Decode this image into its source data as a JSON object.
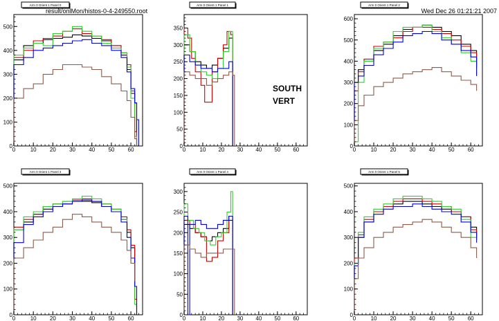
{
  "header": {
    "file": "result/onlMon/histos-0-4-249550.root",
    "datetime": "Wed Dec 26 01:21:21 2007"
  },
  "overlay_text": [
    "SOUTH",
    "VERT"
  ],
  "colors": {
    "black": "#000000",
    "red": "#cc0000",
    "green": "#33cc33",
    "blue": "#0000dd",
    "brown": "#8b5a4a"
  },
  "chart_data": [
    {
      "type": "line",
      "title": "Arm 0 Orient 1 Panel 0",
      "xlim": [
        0,
        66
      ],
      "ylim": [
        0,
        550
      ],
      "xticks": [
        0,
        10,
        20,
        30,
        40,
        50,
        60
      ],
      "yticks": [
        0,
        100,
        200,
        300,
        400,
        500
      ],
      "series": [
        {
          "color": "black",
          "x": [
            0,
            5,
            10,
            15,
            20,
            25,
            30,
            35,
            40,
            45,
            50,
            55,
            58,
            60,
            62,
            63
          ],
          "y": [
            360,
            420,
            430,
            445,
            450,
            455,
            465,
            460,
            450,
            440,
            420,
            380,
            320,
            220,
            180,
            0
          ]
        },
        {
          "color": "red",
          "x": [
            0,
            5,
            10,
            15,
            20,
            25,
            30,
            35,
            40,
            45,
            50,
            55,
            58,
            60,
            62,
            63
          ],
          "y": [
            370,
            400,
            440,
            450,
            460,
            480,
            490,
            470,
            460,
            445,
            420,
            390,
            340,
            230,
            60,
            0
          ]
        },
        {
          "color": "green",
          "x": [
            0,
            5,
            10,
            15,
            20,
            25,
            30,
            35,
            40,
            45,
            50,
            55,
            58,
            60,
            62,
            63
          ],
          "y": [
            380,
            410,
            430,
            420,
            470,
            480,
            500,
            480,
            460,
            430,
            410,
            390,
            330,
            200,
            40,
            0
          ]
        },
        {
          "color": "blue",
          "x": [
            0,
            5,
            10,
            15,
            20,
            25,
            30,
            35,
            40,
            45,
            50,
            55,
            58,
            60,
            62,
            63,
            64
          ],
          "y": [
            340,
            370,
            400,
            410,
            420,
            430,
            440,
            445,
            430,
            420,
            400,
            370,
            310,
            240,
            180,
            110,
            0
          ]
        },
        {
          "color": "brown",
          "x": [
            0,
            5,
            10,
            15,
            20,
            25,
            30,
            35,
            40,
            45,
            50,
            55,
            58,
            60,
            62,
            63
          ],
          "y": [
            200,
            240,
            260,
            300,
            320,
            340,
            340,
            330,
            320,
            290,
            260,
            230,
            190,
            120,
            30,
            0
          ]
        }
      ]
    },
    {
      "type": "line",
      "title": "Arm 0 Orient 1 Panel 1",
      "xlim": [
        0,
        66
      ],
      "ylim": [
        0,
        390
      ],
      "xticks": [
        0,
        10,
        20,
        30,
        40,
        50,
        60
      ],
      "yticks": [
        0,
        50,
        100,
        150,
        200,
        250,
        300,
        350
      ],
      "series": [
        {
          "color": "black",
          "x": [
            0,
            3,
            6,
            9,
            12,
            15,
            18,
            21,
            24,
            26
          ],
          "y": [
            300,
            280,
            250,
            240,
            230,
            240,
            260,
            290,
            320,
            0
          ]
        },
        {
          "color": "red",
          "x": [
            0,
            2,
            4,
            6,
            9,
            11,
            13,
            15,
            18,
            21,
            23,
            25,
            26
          ],
          "y": [
            350,
            320,
            260,
            220,
            180,
            130,
            130,
            220,
            260,
            300,
            340,
            330,
            0
          ]
        },
        {
          "color": "green",
          "x": [
            0,
            3,
            6,
            9,
            12,
            15,
            18,
            21,
            24,
            26
          ],
          "y": [
            330,
            280,
            240,
            220,
            210,
            200,
            230,
            280,
            340,
            0
          ]
        },
        {
          "color": "blue",
          "x": [
            0,
            3,
            6,
            9,
            12,
            15,
            18,
            21,
            24,
            26
          ],
          "y": [
            270,
            250,
            240,
            230,
            230,
            220,
            230,
            230,
            250,
            0
          ]
        },
        {
          "color": "brown",
          "x": [
            0,
            3,
            6,
            9,
            12,
            15,
            18,
            21,
            24,
            26,
            27
          ],
          "y": [
            220,
            210,
            200,
            200,
            180,
            190,
            200,
            210,
            220,
            210,
            0
          ]
        }
      ]
    },
    {
      "type": "line",
      "title": "Arm 0 Orient 1 Panel 2",
      "xlim": [
        0,
        66
      ],
      "ylim": [
        0,
        620
      ],
      "xticks": [
        0,
        10,
        20,
        30,
        40,
        50,
        60
      ],
      "yticks": [
        0,
        100,
        200,
        300,
        400,
        500,
        600
      ],
      "series": [
        {
          "color": "black",
          "x": [
            0,
            2,
            5,
            10,
            15,
            20,
            25,
            30,
            35,
            40,
            45,
            50,
            55,
            60,
            63
          ],
          "y": [
            300,
            360,
            400,
            450,
            480,
            520,
            550,
            560,
            570,
            560,
            540,
            520,
            480,
            450,
            380
          ]
        },
        {
          "color": "red",
          "x": [
            0,
            2,
            5,
            10,
            15,
            20,
            25,
            30,
            35,
            40,
            45,
            50,
            55,
            60,
            63
          ],
          "y": [
            260,
            350,
            410,
            470,
            490,
            510,
            540,
            560,
            560,
            550,
            530,
            500,
            470,
            440,
            370
          ]
        },
        {
          "color": "green",
          "x": [
            0,
            2,
            5,
            10,
            15,
            20,
            25,
            30,
            35,
            40,
            45,
            50,
            55,
            60,
            63
          ],
          "y": [
            20,
            300,
            400,
            460,
            490,
            540,
            560,
            560,
            570,
            540,
            510,
            480,
            440,
            400,
            330
          ]
        },
        {
          "color": "blue",
          "x": [
            0,
            2,
            5,
            10,
            15,
            20,
            25,
            30,
            35,
            40,
            45,
            50,
            55,
            60,
            63
          ],
          "y": [
            300,
            330,
            380,
            430,
            460,
            490,
            520,
            530,
            540,
            530,
            500,
            480,
            450,
            420,
            330
          ]
        },
        {
          "color": "brown",
          "x": [
            0,
            2,
            5,
            10,
            15,
            20,
            25,
            30,
            35,
            40,
            45,
            50,
            55,
            60,
            63
          ],
          "y": [
            120,
            190,
            240,
            280,
            300,
            320,
            340,
            350,
            360,
            370,
            350,
            330,
            310,
            290,
            260
          ]
        }
      ]
    },
    {
      "type": "line",
      "title": "Arm 0 Orient 1 Panel 3",
      "xlim": [
        0,
        66
      ],
      "ylim": [
        0,
        510
      ],
      "xticks": [
        0,
        10,
        20,
        30,
        40,
        50,
        60
      ],
      "yticks": [
        0,
        100,
        200,
        300,
        400,
        500
      ],
      "series": [
        {
          "color": "black",
          "x": [
            0,
            5,
            10,
            15,
            20,
            25,
            30,
            35,
            40,
            45,
            50,
            55,
            58,
            60,
            62
          ],
          "y": [
            330,
            360,
            390,
            410,
            420,
            430,
            440,
            440,
            435,
            420,
            400,
            370,
            320,
            260,
            120
          ]
        },
        {
          "color": "red",
          "x": [
            0,
            5,
            10,
            15,
            20,
            25,
            30,
            35,
            40,
            45,
            50,
            55,
            58,
            60,
            62,
            63
          ],
          "y": [
            340,
            370,
            390,
            420,
            430,
            440,
            445,
            450,
            440,
            430,
            410,
            380,
            330,
            270,
            60,
            0
          ]
        },
        {
          "color": "green",
          "x": [
            0,
            5,
            10,
            15,
            20,
            25,
            30,
            35,
            40,
            45,
            50,
            55,
            58,
            60,
            62,
            63
          ],
          "y": [
            330,
            380,
            400,
            420,
            430,
            440,
            450,
            460,
            450,
            430,
            410,
            370,
            300,
            200,
            40,
            0
          ]
        },
        {
          "color": "blue",
          "x": [
            0,
            5,
            10,
            15,
            20,
            25,
            30,
            35,
            40,
            45,
            50,
            55,
            58,
            60,
            62,
            63
          ],
          "y": [
            280,
            350,
            380,
            400,
            420,
            430,
            440,
            445,
            440,
            420,
            400,
            360,
            300,
            220,
            110,
            0
          ]
        },
        {
          "color": "brown",
          "x": [
            0,
            5,
            10,
            15,
            20,
            25,
            30,
            35,
            40,
            45,
            50,
            55,
            58,
            60,
            62
          ],
          "y": [
            220,
            260,
            290,
            320,
            340,
            370,
            390,
            380,
            360,
            340,
            320,
            290,
            250,
            200,
            130
          ]
        }
      ]
    },
    {
      "type": "line",
      "title": "Arm 0 Orient 1 Panel 4",
      "xlim": [
        0,
        66
      ],
      "ylim": [
        0,
        320
      ],
      "xticks": [
        0,
        10,
        20,
        30,
        40,
        50,
        60
      ],
      "yticks": [
        0,
        50,
        100,
        150,
        200,
        250,
        300
      ],
      "series": [
        {
          "color": "black",
          "x": [
            0,
            3,
            6,
            9,
            12,
            15,
            18,
            21,
            24,
            26
          ],
          "y": [
            220,
            210,
            200,
            190,
            180,
            190,
            200,
            210,
            230,
            0
          ]
        },
        {
          "color": "red",
          "x": [
            0,
            3,
            6,
            9,
            12,
            15,
            18,
            21,
            24,
            26
          ],
          "y": [
            230,
            220,
            200,
            190,
            130,
            140,
            180,
            200,
            240,
            0
          ]
        },
        {
          "color": "green",
          "x": [
            0,
            2,
            5,
            8,
            11,
            14,
            17,
            20,
            23,
            25,
            26
          ],
          "y": [
            270,
            230,
            210,
            200,
            180,
            170,
            190,
            200,
            250,
            300,
            0
          ]
        },
        {
          "color": "blue",
          "x": [
            0,
            1,
            2,
            3,
            6,
            9,
            12,
            15,
            18,
            21,
            24,
            26
          ],
          "y": [
            240,
            240,
            0,
            220,
            230,
            220,
            210,
            210,
            220,
            230,
            240,
            0
          ]
        },
        {
          "color": "brown",
          "x": [
            0,
            3,
            6,
            9,
            12,
            15,
            18,
            21,
            24,
            26,
            27
          ],
          "y": [
            170,
            160,
            150,
            140,
            150,
            150,
            150,
            160,
            160,
            160,
            0
          ]
        }
      ]
    },
    {
      "type": "line",
      "title": "Arm 0 Orient 1 Panel 5",
      "xlim": [
        0,
        66
      ],
      "ylim": [
        0,
        510
      ],
      "xticks": [
        0,
        10,
        20,
        30,
        40,
        50,
        60
      ],
      "yticks": [
        0,
        100,
        200,
        300,
        400,
        500
      ],
      "series": [
        {
          "color": "black",
          "x": [
            0,
            2,
            5,
            10,
            15,
            20,
            25,
            30,
            35,
            40,
            45,
            50,
            55,
            60,
            63
          ],
          "y": [
            200,
            300,
            360,
            400,
            420,
            430,
            440,
            440,
            430,
            420,
            410,
            400,
            380,
            340,
            300
          ]
        },
        {
          "color": "red",
          "x": [
            0,
            2,
            5,
            10,
            15,
            20,
            25,
            30,
            35,
            40,
            45,
            50,
            55,
            60,
            63
          ],
          "y": [
            220,
            310,
            370,
            400,
            420,
            440,
            450,
            450,
            440,
            430,
            420,
            400,
            380,
            330,
            290
          ]
        },
        {
          "color": "green",
          "x": [
            0,
            2,
            5,
            10,
            15,
            20,
            25,
            30,
            35,
            40,
            45,
            50,
            55,
            60,
            63
          ],
          "y": [
            200,
            320,
            380,
            410,
            430,
            450,
            460,
            460,
            450,
            440,
            420,
            410,
            370,
            300,
            290
          ]
        },
        {
          "color": "blue",
          "x": [
            0,
            2,
            5,
            10,
            15,
            20,
            25,
            30,
            35,
            40,
            45,
            50,
            55,
            60,
            63
          ],
          "y": [
            190,
            300,
            360,
            390,
            410,
            420,
            420,
            430,
            420,
            410,
            400,
            390,
            360,
            320,
            280
          ]
        },
        {
          "color": "brown",
          "x": [
            0,
            2,
            5,
            10,
            15,
            20,
            25,
            30,
            35,
            40,
            45,
            50,
            55,
            60,
            63
          ],
          "y": [
            140,
            220,
            260,
            300,
            320,
            340,
            350,
            360,
            370,
            360,
            340,
            320,
            300,
            260,
            220
          ]
        }
      ]
    }
  ]
}
